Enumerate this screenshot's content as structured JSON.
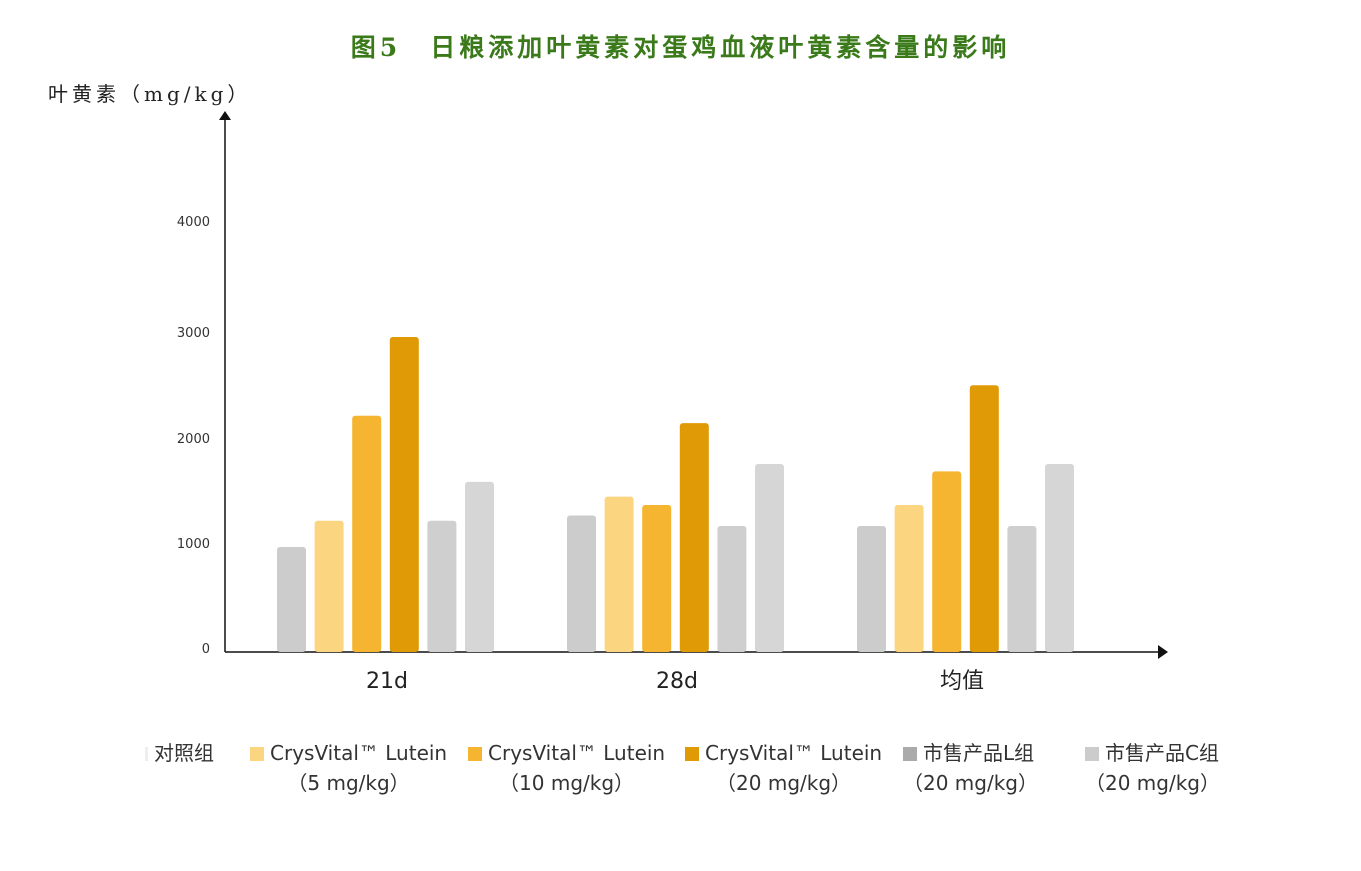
{
  "chart_data": {
    "type": "bar",
    "title": "图5　日粮添加叶黄素对蛋鸡血液叶黄素含量的影响",
    "ylabel": "叶黄素（mg/kg）",
    "xlabel": "",
    "categories": [
      "21d",
      "28d",
      "均值"
    ],
    "yticks": [
      "0",
      "1000",
      "2000",
      "3000",
      "4000"
    ],
    "ylim": [
      0,
      4500
    ],
    "grid": false,
    "legend_position": "bottom",
    "series": [
      {
        "name": "对照组",
        "sub": "",
        "color": "#cccccc",
        "swatch": "#eeeeee",
        "values": [
          1000,
          1300,
          1200
        ]
      },
      {
        "name": "CrysVital™ Lutein",
        "sub": "（5 mg/kg）",
        "color": "#fcd581",
        "swatch": "#fcd581",
        "values": [
          1250,
          1480,
          1400
        ]
      },
      {
        "name": "CrysVital™ Lutein",
        "sub": "（10 mg/kg）",
        "color": "#f5b530",
        "swatch": "#f5b530",
        "values": [
          2250,
          1400,
          1720
        ]
      },
      {
        "name": "CrysVital™ Lutein",
        "sub": "（20 mg/kg）",
        "color": "#e09a05",
        "swatch": "#e09a05",
        "values": [
          3000,
          2180,
          2540
        ]
      },
      {
        "name": "市售产品L组",
        "sub": "（20 mg/kg）",
        "color": "#cfcfcf",
        "swatch": "#aaaaaa",
        "values": [
          1250,
          1200,
          1200
        ]
      },
      {
        "name": "市售产品C组",
        "sub": "（20 mg/kg）",
        "color": "#d6d6d6",
        "swatch": "#cccccc",
        "values": [
          1620,
          1790,
          1790
        ]
      }
    ]
  }
}
